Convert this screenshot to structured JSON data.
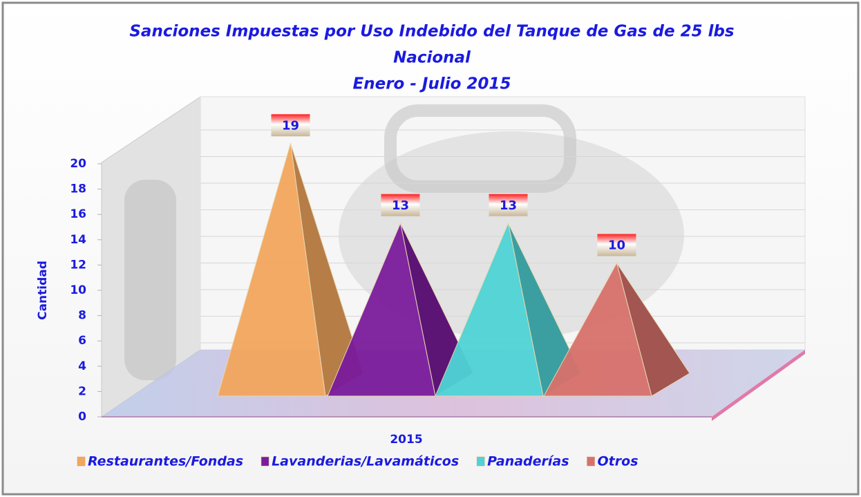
{
  "chart_data": {
    "type": "pyramid3d",
    "title": [
      "Sanciones Impuestas por Uso Indebido del Tanque de Gas de 25 lbs",
      "Nacional",
      "Enero - Julio 2015"
    ],
    "y_label": "Cantidad",
    "categories": [
      "2015"
    ],
    "series": [
      {
        "name": "Restaurantes/Fondas",
        "color": "#f3a65e",
        "values": [
          19
        ]
      },
      {
        "name": "Lavanderias/Lavamáticos",
        "color": "#7b1c9c",
        "values": [
          13
        ]
      },
      {
        "name": "Panaderías",
        "color": "#4fd4d6",
        "values": [
          13
        ]
      },
      {
        "name": "Otros",
        "color": "#d8716c",
        "values": [
          10
        ]
      }
    ],
    "ylim": [
      0,
      20
    ],
    "yticks": [
      0,
      2,
      4,
      6,
      8,
      10,
      12,
      14,
      16,
      18,
      20
    ],
    "grid": true,
    "legend": "bottom"
  }
}
